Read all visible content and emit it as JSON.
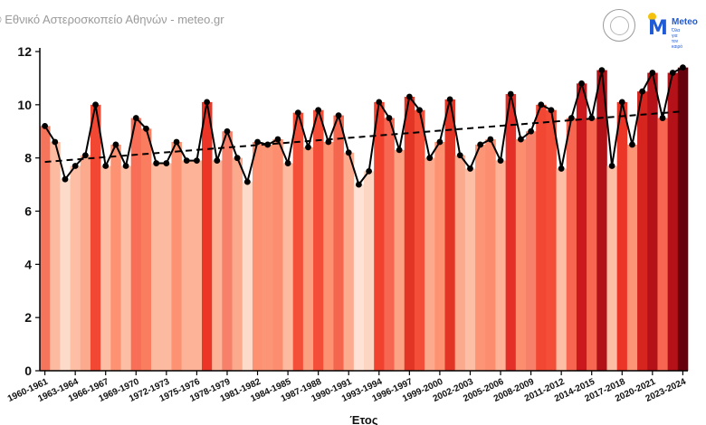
{
  "header": {
    "credit": "© Εθνικό Αστεροσκοπείο Αθηνών - meteo.gr",
    "logo_text": "Meteo",
    "logo_tagline": "Όλα για τον καιρό"
  },
  "chart_data": {
    "type": "bar",
    "xlabel": "Έτος",
    "ylabel": "",
    "ylim": [
      0,
      12
    ],
    "yticks": [
      0,
      2,
      4,
      6,
      8,
      10,
      12
    ],
    "xtick_labels": [
      "1960-1961",
      "1963-1964",
      "1966-1967",
      "1969-1970",
      "1972-1973",
      "1975-1976",
      "1978-1979",
      "1981-1982",
      "1984-1985",
      "1987-1988",
      "1990-1991",
      "1993-1994",
      "1996-1997",
      "1999-2000",
      "2002-2003",
      "2005-2006",
      "2008-2009",
      "2011-2012",
      "2014-2015",
      "2017-2018",
      "2020-2021",
      "2023-2024"
    ],
    "categories": [
      "1960-1961",
      "1961-1962",
      "1962-1963",
      "1963-1964",
      "1964-1965",
      "1965-1966",
      "1966-1967",
      "1967-1968",
      "1968-1969",
      "1969-1970",
      "1970-1971",
      "1971-1972",
      "1972-1973",
      "1973-1974",
      "1974-1975",
      "1975-1976",
      "1976-1977",
      "1977-1978",
      "1978-1979",
      "1979-1980",
      "1980-1981",
      "1981-1982",
      "1982-1983",
      "1983-1984",
      "1984-1985",
      "1985-1986",
      "1986-1987",
      "1987-1988",
      "1988-1989",
      "1989-1990",
      "1990-1991",
      "1991-1992",
      "1992-1993",
      "1993-1994",
      "1994-1995",
      "1995-1996",
      "1996-1997",
      "1997-1998",
      "1998-1999",
      "1999-2000",
      "2000-2001",
      "2001-2002",
      "2002-2003",
      "2003-2004",
      "2004-2005",
      "2005-2006",
      "2006-2007",
      "2007-2008",
      "2008-2009",
      "2009-2010",
      "2010-2011",
      "2011-2012",
      "2012-2013",
      "2013-2014",
      "2014-2015",
      "2015-2016",
      "2016-2017",
      "2017-2018",
      "2018-2019",
      "2019-2020",
      "2020-2021",
      "2021-2022",
      "2022-2023",
      "2023-2024"
    ],
    "values": [
      9.2,
      8.6,
      7.2,
      7.7,
      8.1,
      10.0,
      7.7,
      8.5,
      7.7,
      9.5,
      9.1,
      7.8,
      7.8,
      8.6,
      7.9,
      7.9,
      10.1,
      7.9,
      9.0,
      8.0,
      7.1,
      8.6,
      8.5,
      8.7,
      7.8,
      9.7,
      8.4,
      9.8,
      8.6,
      9.6,
      8.2,
      7.0,
      7.5,
      10.1,
      9.5,
      8.3,
      10.3,
      9.8,
      8.0,
      8.6,
      10.2,
      8.1,
      7.6,
      8.5,
      8.7,
      7.9,
      10.4,
      8.7,
      9.0,
      10.0,
      9.8,
      7.6,
      9.5,
      10.8,
      9.5,
      11.3,
      7.7,
      10.1,
      8.5,
      10.5,
      11.2,
      9.5,
      11.2,
      11.4
    ],
    "bar_colors": [
      "#f5755c",
      "#fcbba1",
      "#fddbca",
      "#fcbea5",
      "#fcaa8d",
      "#f24733",
      "#fcbea5",
      "#fc9272",
      "#fcbea5",
      "#f86e56",
      "#fb7d5f",
      "#fcbba1",
      "#fcbba1",
      "#fc9272",
      "#fcb398",
      "#fcb398",
      "#ea3527",
      "#fcb398",
      "#f6806a",
      "#fcaa8d",
      "#fddbca",
      "#fc9272",
      "#fc9575",
      "#fc8d6e",
      "#fcbba1",
      "#f44f39",
      "#fca082",
      "#f44e38",
      "#fc9272",
      "#f5664f",
      "#fcab8f",
      "#fee2d5",
      "#fdd5c3",
      "#f1422f",
      "#f66650",
      "#fca385",
      "#e33526",
      "#f44e38",
      "#fcaa8d",
      "#fc9272",
      "#e33526",
      "#fcaa8d",
      "#fcbea5",
      "#fc9575",
      "#fc8d6e",
      "#fcb398",
      "#e32f27",
      "#fc8d6e",
      "#f6806a",
      "#f24733",
      "#f44e38",
      "#fcbea5",
      "#f66650",
      "#cb181d",
      "#f66650",
      "#b11218",
      "#fcbea5",
      "#ea3527",
      "#fc9575",
      "#d6241f",
      "#b41218",
      "#f66650",
      "#b41218",
      "#67000d"
    ],
    "line_values": [
      9.2,
      8.6,
      7.2,
      7.7,
      8.1,
      10.0,
      7.7,
      8.5,
      7.7,
      9.5,
      9.1,
      7.8,
      7.8,
      8.6,
      7.9,
      7.9,
      10.1,
      7.9,
      9.0,
      8.0,
      7.1,
      8.6,
      8.5,
      8.7,
      7.8,
      9.7,
      8.4,
      9.8,
      8.6,
      9.6,
      8.2,
      7.0,
      7.5,
      10.1,
      9.5,
      8.3,
      10.3,
      9.8,
      8.0,
      8.6,
      10.2,
      8.1,
      7.6,
      8.5,
      8.7,
      7.9,
      10.4,
      8.7,
      9.0,
      10.0,
      9.8,
      7.6,
      9.5,
      10.8,
      9.5,
      11.3,
      7.7,
      10.1,
      8.5,
      10.5,
      11.2,
      9.5,
      11.2,
      11.4
    ],
    "trend": {
      "start": 7.85,
      "end": 9.75,
      "style": "dashed"
    },
    "grid": false,
    "colors": {
      "line": "#000000",
      "trend": "#000000",
      "axis": "#000000"
    }
  }
}
